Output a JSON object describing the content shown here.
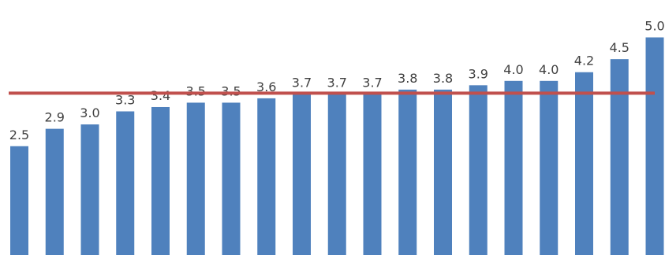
{
  "chart_data": {
    "type": "bar",
    "categories": [
      "",
      "",
      "",
      "",
      "",
      "",
      "",
      "",
      "",
      "",
      "",
      "",
      "",
      "",
      "",
      "",
      "",
      "",
      ""
    ],
    "values": [
      2.5,
      2.9,
      3.0,
      3.3,
      3.4,
      3.5,
      3.5,
      3.6,
      3.7,
      3.7,
      3.7,
      3.8,
      3.8,
      3.9,
      4.0,
      4.0,
      4.2,
      4.5,
      5.0
    ],
    "value_labels": [
      "2.5",
      "2.9",
      "3.0",
      "3.3",
      "3.4",
      "3.5",
      "3.5",
      "3.6",
      "3.7",
      "3.7",
      "3.7",
      "3.8",
      "3.8",
      "3.9",
      "4.0",
      "4.0",
      "4.2",
      "4.5",
      "5.0"
    ],
    "reference_line": {
      "value": 3.7
    },
    "title": "",
    "xlabel": "",
    "ylabel": "",
    "ylim": [
      0,
      5.4
    ],
    "grid": false,
    "legend": "none",
    "colors": {
      "bar": "#4F81BD",
      "reference_line": "#C0504D",
      "label": "#404040"
    }
  }
}
